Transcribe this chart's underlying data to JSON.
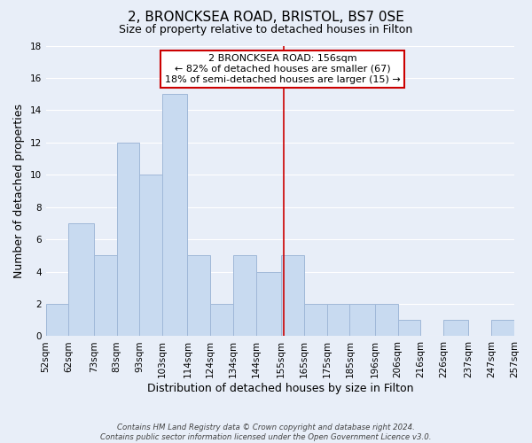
{
  "title": "2, BRONCKSEA ROAD, BRISTOL, BS7 0SE",
  "subtitle": "Size of property relative to detached houses in Filton",
  "xlabel": "Distribution of detached houses by size in Filton",
  "ylabel": "Number of detached properties",
  "bar_left_edges": [
    52,
    62,
    73,
    83,
    93,
    103,
    114,
    124,
    134,
    144,
    155,
    165,
    175,
    185,
    196,
    206,
    216,
    226,
    237,
    247
  ],
  "bar_widths": [
    10,
    11,
    10,
    10,
    10,
    11,
    10,
    10,
    10,
    11,
    10,
    10,
    10,
    11,
    10,
    10,
    10,
    11,
    10,
    10
  ],
  "bar_heights": [
    2,
    7,
    5,
    12,
    10,
    15,
    5,
    2,
    5,
    4,
    5,
    2,
    2,
    2,
    2,
    1,
    0,
    1,
    0,
    1
  ],
  "bar_color": "#c8daf0",
  "bar_edge_color": "#a0b8d8",
  "vline_x": 156,
  "vline_color": "#cc0000",
  "annotation_box_text": "2 BRONCKSEA ROAD: 156sqm\n← 82% of detached houses are smaller (67)\n18% of semi-detached houses are larger (15) →",
  "annotation_box_facecolor": "#ffffff",
  "annotation_box_edgecolor": "#cc0000",
  "tick_labels": [
    "52sqm",
    "62sqm",
    "73sqm",
    "83sqm",
    "93sqm",
    "103sqm",
    "114sqm",
    "124sqm",
    "134sqm",
    "144sqm",
    "155sqm",
    "165sqm",
    "175sqm",
    "185sqm",
    "196sqm",
    "206sqm",
    "216sqm",
    "226sqm",
    "237sqm",
    "247sqm",
    "257sqm"
  ],
  "ylim": [
    0,
    18
  ],
  "yticks": [
    0,
    2,
    4,
    6,
    8,
    10,
    12,
    14,
    16,
    18
  ],
  "footer_text": "Contains HM Land Registry data © Crown copyright and database right 2024.\nContains public sector information licensed under the Open Government Licence v3.0.",
  "title_fontsize": 11,
  "subtitle_fontsize": 9,
  "axis_label_fontsize": 9,
  "tick_fontsize": 7.5,
  "annotation_fontsize": 8,
  "grid_color": "#ffffff",
  "bg_color": "#e8eef8"
}
